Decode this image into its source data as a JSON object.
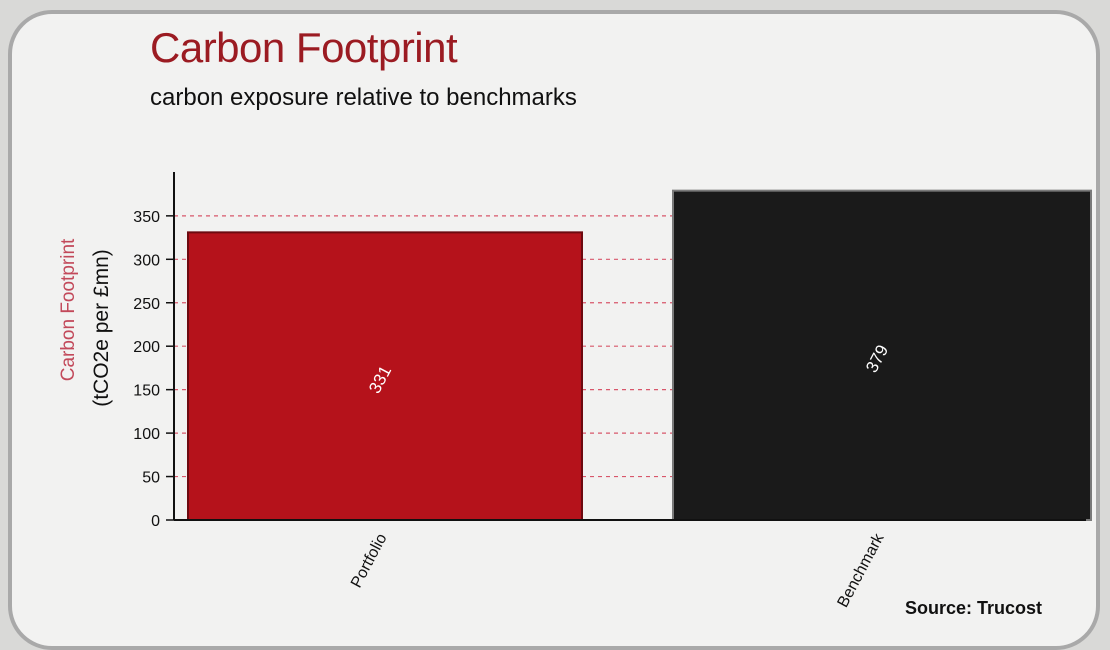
{
  "header": {
    "title": "Carbon Footprint",
    "subtitle": "carbon exposure relative to benchmarks"
  },
  "footer": {
    "source": "Source: Trucost"
  },
  "colors": {
    "title": "#9b1b22",
    "ylabel_primary": "#c2495a",
    "gridline": "#d8576b",
    "portfolio_bar": "#b5121b",
    "benchmark_bar": "#1a1a1a"
  },
  "chart_data": {
    "type": "bar",
    "title": "Carbon Footprint",
    "subtitle": "carbon exposure relative to benchmarks",
    "categories": [
      "Portfolio",
      "Benchmark"
    ],
    "values": [
      331,
      379
    ],
    "data_labels": [
      "331",
      "379"
    ],
    "bar_colors": [
      "#b5121b",
      "#1a1a1a"
    ],
    "ylabel": [
      "Carbon Footprint",
      "(tCO2e per £mn)"
    ],
    "xlabel": "",
    "ylim": [
      0,
      400
    ],
    "yticks": [
      0,
      50,
      100,
      150,
      200,
      250,
      300,
      350
    ],
    "grid": "dashed horizontal",
    "legend": "none"
  }
}
